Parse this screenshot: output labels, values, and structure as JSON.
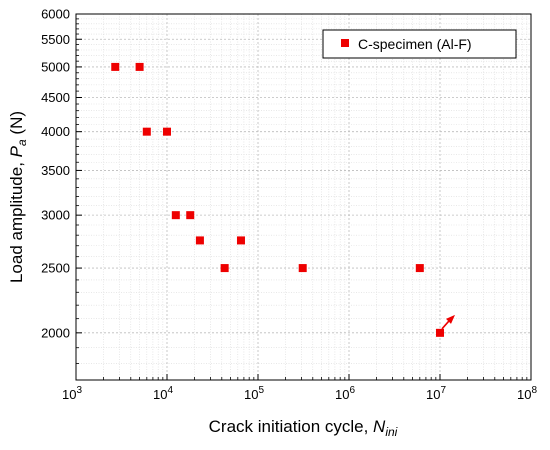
{
  "chart_data": {
    "type": "scatter",
    "title": "",
    "xlabel": "Crack initiation cycle, ",
    "xlabel_sub": "N",
    "xlabel_subscript": "ini",
    "ylabel": "Load amplitude, ",
    "ylabel_sub": "P",
    "ylabel_subscript": "a",
    "ylabel_unit": " (N)",
    "x_scale": "log",
    "y_scale": "log",
    "xlim": [
      1000,
      100000000
    ],
    "ylim": [
      1700,
      6000
    ],
    "x_ticks": [
      {
        "value": 1000,
        "base": "10",
        "exp": "3"
      },
      {
        "value": 10000,
        "base": "10",
        "exp": "4"
      },
      {
        "value": 100000,
        "base": "10",
        "exp": "5"
      },
      {
        "value": 1000000,
        "base": "10",
        "exp": "6"
      },
      {
        "value": 10000000,
        "base": "10",
        "exp": "7"
      },
      {
        "value": 100000000,
        "base": "10",
        "exp": "8"
      }
    ],
    "y_ticks": [
      {
        "value": 2000,
        "label": "2000"
      },
      {
        "value": 2500,
        "label": "2500"
      },
      {
        "value": 3000,
        "label": "3000"
      },
      {
        "value": 3500,
        "label": "3500"
      },
      {
        "value": 4000,
        "label": "4000"
      },
      {
        "value": 4500,
        "label": "4500"
      },
      {
        "value": 5000,
        "label": "5000"
      },
      {
        "value": 5500,
        "label": "5500"
      },
      {
        "value": 6000,
        "label": "6000"
      }
    ],
    "grid": true,
    "legend_position": "top-right",
    "series": [
      {
        "name": "C-specimen (Al-F)",
        "color": "#ee0000",
        "marker": "square",
        "points": [
          {
            "x": 2700,
            "y": 5000
          },
          {
            "x": 5000,
            "y": 5000
          },
          {
            "x": 6000,
            "y": 4000
          },
          {
            "x": 10000,
            "y": 4000
          },
          {
            "x": 12500,
            "y": 3000
          },
          {
            "x": 18000,
            "y": 3000
          },
          {
            "x": 23000,
            "y": 2750
          },
          {
            "x": 65000,
            "y": 2750
          },
          {
            "x": 43000,
            "y": 2500
          },
          {
            "x": 310000,
            "y": 2500
          },
          {
            "x": 6000000,
            "y": 2500
          },
          {
            "x": 10000000,
            "y": 2000,
            "runout": true
          }
        ]
      }
    ]
  }
}
